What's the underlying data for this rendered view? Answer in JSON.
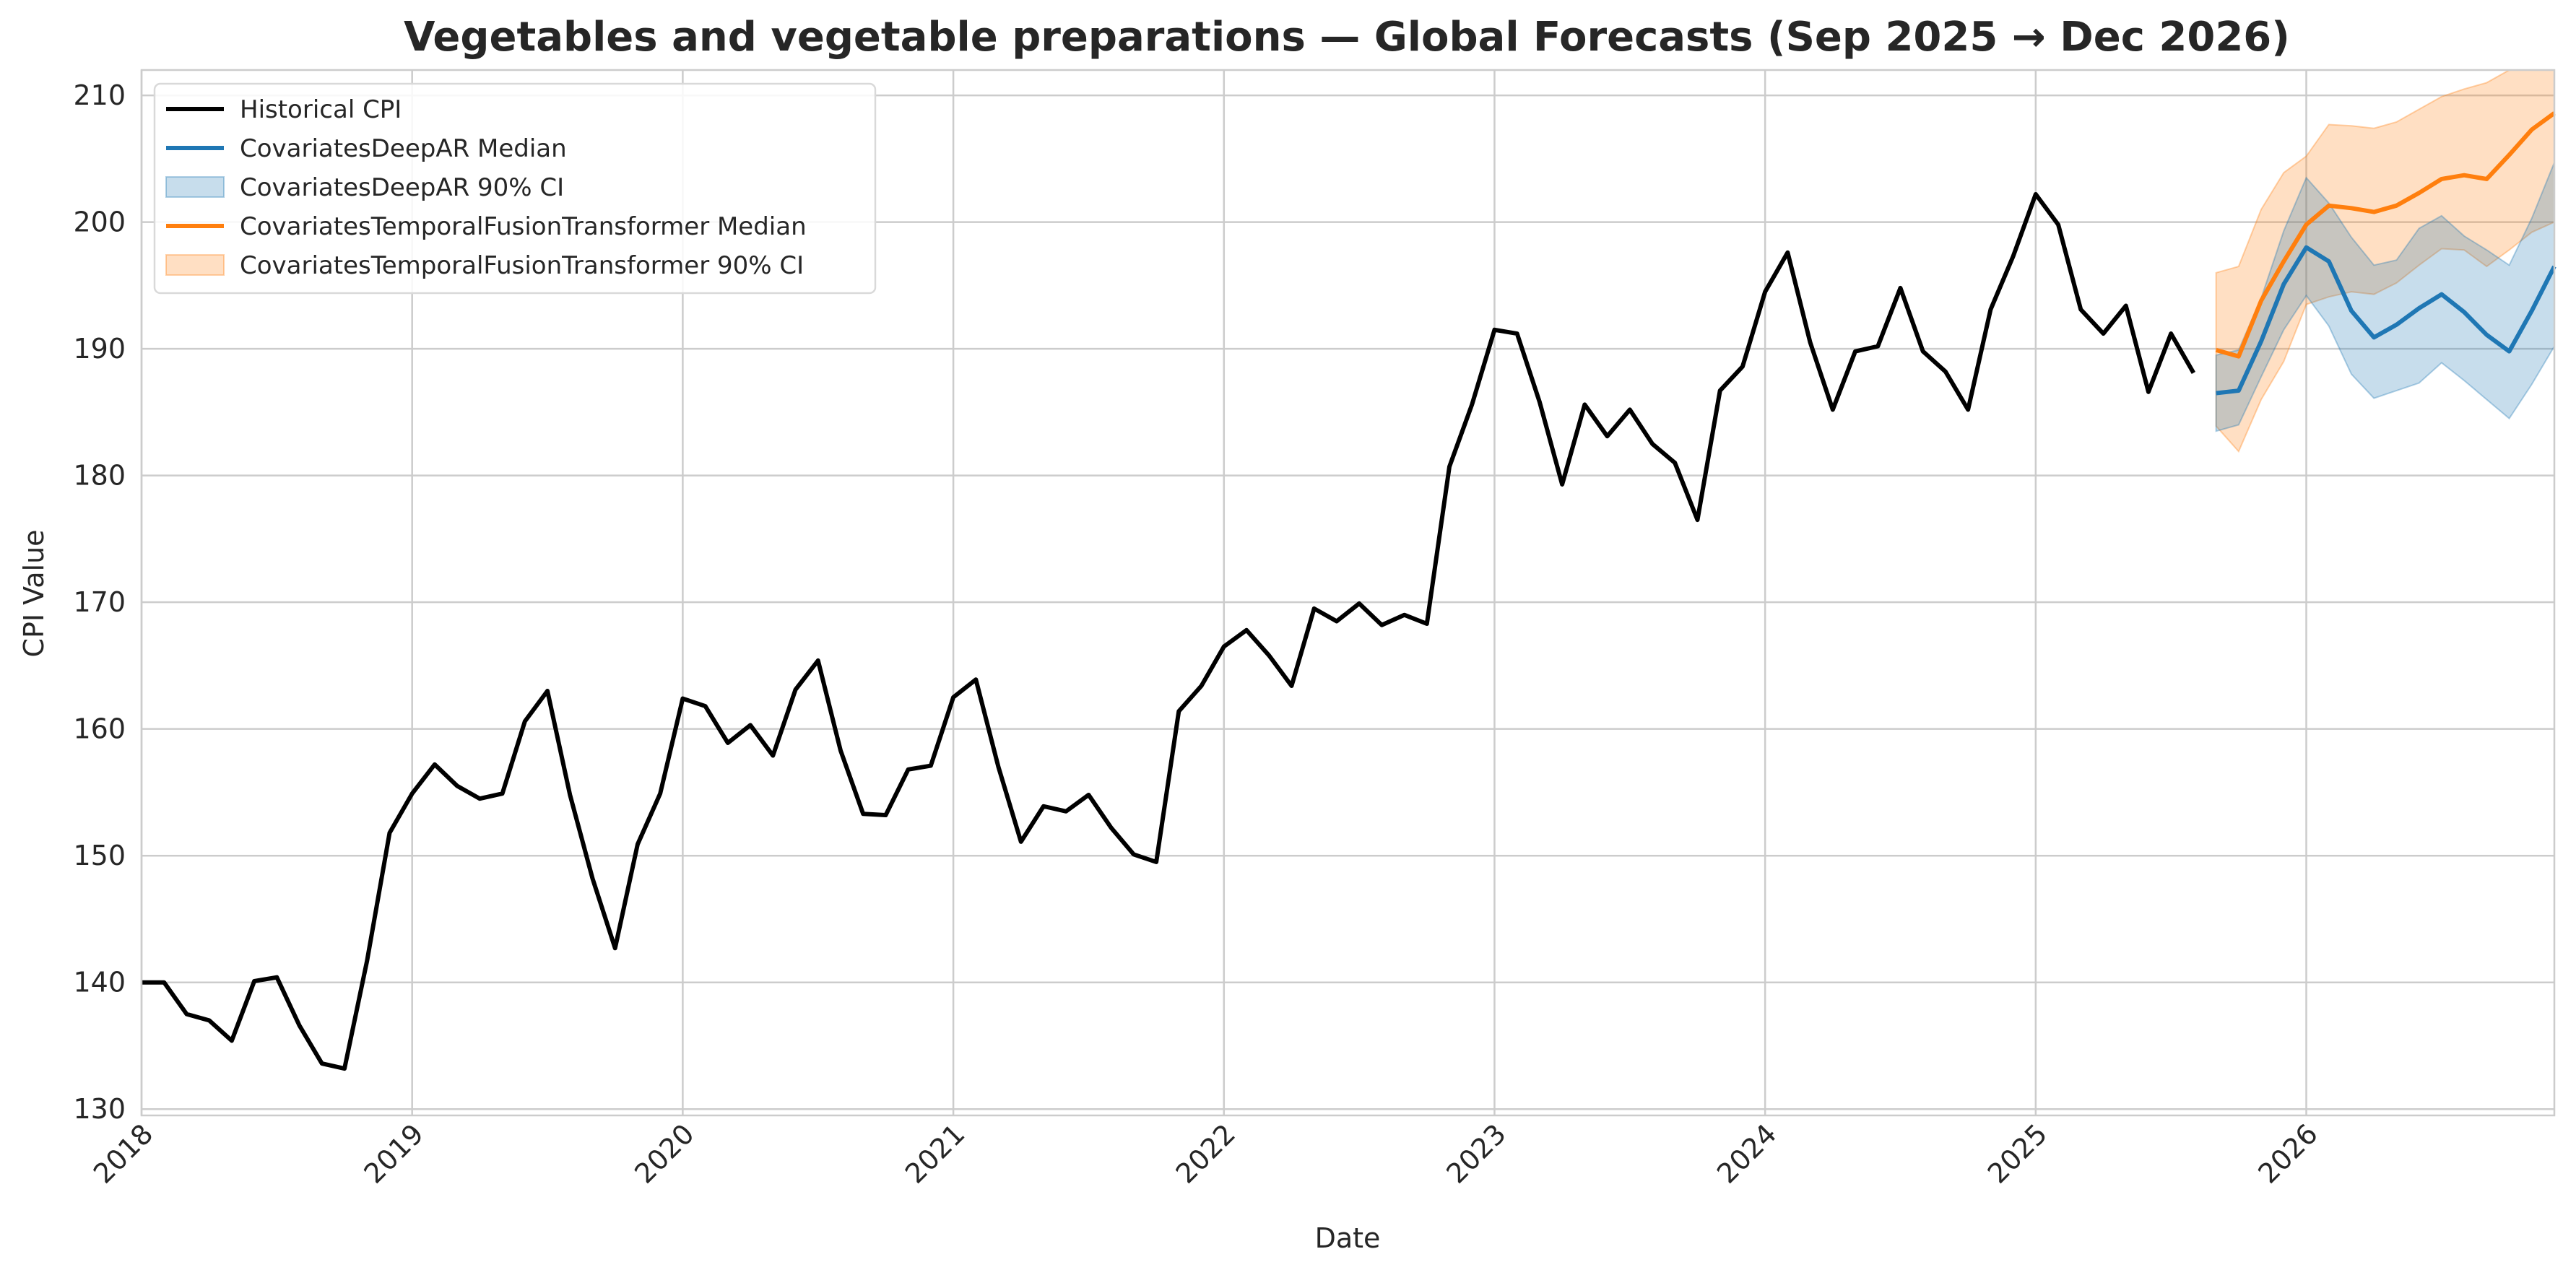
{
  "chart_data": {
    "type": "line",
    "title": "Vegetables and vegetable preparations — Global Forecasts (Sep 2025 → Dec 2026)",
    "xlabel": "Date",
    "ylabel": "CPI Value",
    "xlim": [
      "2018-01",
      "2026-12"
    ],
    "ylim": [
      129.5,
      212
    ],
    "grid": true,
    "legend_position": "top-left",
    "x_ticks": [
      "2018",
      "2019",
      "2020",
      "2021",
      "2022",
      "2023",
      "2024",
      "2025",
      "2026"
    ],
    "y_ticks": [
      130,
      140,
      150,
      160,
      170,
      180,
      190,
      200,
      210
    ],
    "historical": {
      "name": "Historical CPI",
      "color": "#000000",
      "start": "2018-01",
      "values": [
        140.0,
        140.0,
        137.5,
        137.0,
        135.4,
        140.1,
        140.4,
        136.6,
        133.6,
        133.2,
        141.7,
        151.8,
        154.9,
        157.2,
        155.5,
        154.5,
        154.9,
        160.6,
        163.0,
        154.8,
        148.2,
        142.7,
        150.9,
        154.9,
        162.4,
        161.8,
        158.9,
        160.3,
        157.9,
        163.1,
        165.4,
        158.3,
        153.3,
        153.2,
        156.8,
        157.1,
        162.5,
        163.9,
        157.0,
        151.1,
        153.9,
        153.5,
        154.8,
        152.2,
        150.1,
        149.5,
        161.4,
        163.4,
        166.5,
        167.8,
        165.8,
        163.4,
        169.5,
        168.5,
        169.9,
        168.2,
        169.0,
        168.3,
        180.7,
        185.6,
        191.5,
        191.2,
        185.8,
        179.3,
        185.6,
        183.1,
        185.2,
        182.5,
        181.0,
        176.5,
        186.7,
        188.6,
        194.5,
        197.6,
        190.5,
        185.2,
        189.8,
        190.2,
        194.8,
        189.8,
        188.2,
        185.2,
        193.1,
        197.3,
        202.2,
        199.8,
        193.1,
        191.2,
        193.4,
        186.6,
        191.2,
        188.1
      ]
    },
    "forecast_dates": [
      "2025-09",
      "2025-10",
      "2025-11",
      "2025-12",
      "2026-01",
      "2026-02",
      "2026-03",
      "2026-04",
      "2026-05",
      "2026-06",
      "2026-07",
      "2026-08",
      "2026-09",
      "2026-10",
      "2026-11",
      "2026-12"
    ],
    "series": [
      {
        "name": "CovariatesDeepAR Median",
        "color": "#1f77b4",
        "values": [
          186.5,
          186.7,
          190.6,
          195.1,
          198.0,
          196.9,
          193.0,
          190.9,
          191.9,
          193.2,
          194.3,
          192.9,
          191.1,
          189.8,
          193.0,
          196.5
        ],
        "ci_name": "CovariatesDeepAR 90% CI",
        "ci_lower": [
          183.5,
          184.0,
          187.8,
          191.5,
          194.2,
          191.8,
          188.0,
          186.1,
          186.7,
          187.3,
          188.9,
          187.5,
          186.0,
          184.5,
          187.2,
          190.2
        ],
        "ci_upper": [
          189.5,
          189.9,
          194.0,
          199.3,
          203.5,
          201.5,
          198.8,
          196.6,
          197.0,
          199.5,
          200.5,
          198.9,
          197.8,
          196.6,
          200.3,
          204.7
        ]
      },
      {
        "name": "CovariatesTemporalFusionTransformer Median",
        "color": "#ff7f0e",
        "values": [
          189.9,
          189.4,
          193.8,
          196.9,
          199.8,
          201.3,
          201.1,
          200.8,
          201.3,
          202.3,
          203.4,
          203.7,
          203.4,
          205.3,
          207.3,
          208.6
        ],
        "ci_name": "CovariatesTemporalFusionTransformer 90% CI",
        "ci_lower": [
          183.9,
          181.9,
          186.0,
          189.0,
          193.5,
          194.1,
          194.5,
          194.3,
          195.2,
          196.6,
          197.9,
          197.8,
          196.5,
          197.8,
          199.2,
          200.0
        ],
        "ci_upper": [
          196.0,
          196.5,
          201.0,
          203.9,
          205.2,
          207.7,
          207.6,
          207.4,
          207.9,
          208.9,
          209.9,
          210.5,
          211.0,
          212.0,
          212.0,
          212.0
        ]
      }
    ]
  }
}
